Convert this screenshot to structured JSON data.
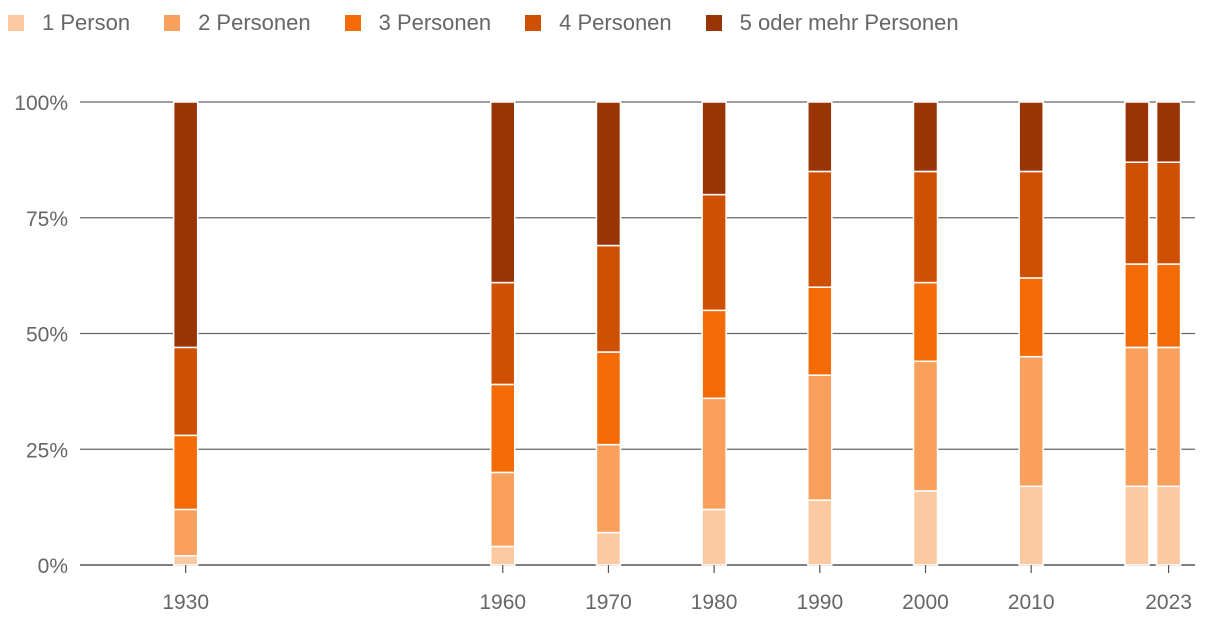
{
  "chart_data": {
    "type": "bar",
    "stacked": true,
    "percent": true,
    "title": "",
    "xlabel": "",
    "ylabel": "",
    "ylim": [
      0,
      100
    ],
    "y_ticks": [
      "0%",
      "25%",
      "50%",
      "75%",
      "100%"
    ],
    "y_tick_values": [
      0,
      25,
      50,
      75,
      100
    ],
    "grid": true,
    "legend_position": "top-left",
    "x_tick_labels": [
      "1930",
      "1960",
      "1970",
      "1980",
      "1990",
      "2000",
      "2010",
      "2023"
    ],
    "bars": [
      {
        "x": 1930,
        "values": [
          2,
          10,
          16,
          19,
          53
        ]
      },
      {
        "x": 1960,
        "values": [
          4,
          16,
          19,
          22,
          39
        ]
      },
      {
        "x": 1970,
        "values": [
          7,
          19,
          20,
          23,
          31
        ]
      },
      {
        "x": 1980,
        "values": [
          12,
          24,
          19,
          25,
          20
        ]
      },
      {
        "x": 1990,
        "values": [
          14,
          27,
          19,
          25,
          15
        ]
      },
      {
        "x": 2000,
        "values": [
          16,
          28,
          17,
          24,
          15
        ]
      },
      {
        "x": 2010,
        "values": [
          17,
          28,
          17,
          23,
          15
        ]
      },
      {
        "x": 2020,
        "values": [
          17,
          30,
          18,
          22,
          13
        ]
      },
      {
        "x": 2023,
        "values": [
          17,
          30,
          18,
          22,
          13
        ]
      }
    ],
    "series": [
      {
        "name": "1 Person",
        "color": "#fdc9a1"
      },
      {
        "name": "2 Personen",
        "color": "#f9a05c"
      },
      {
        "name": "3 Personen",
        "color": "#f26b05"
      },
      {
        "name": "4 Personen",
        "color": "#d05003"
      },
      {
        "name": "5 oder mehr Personen",
        "color": "#993404"
      }
    ]
  }
}
